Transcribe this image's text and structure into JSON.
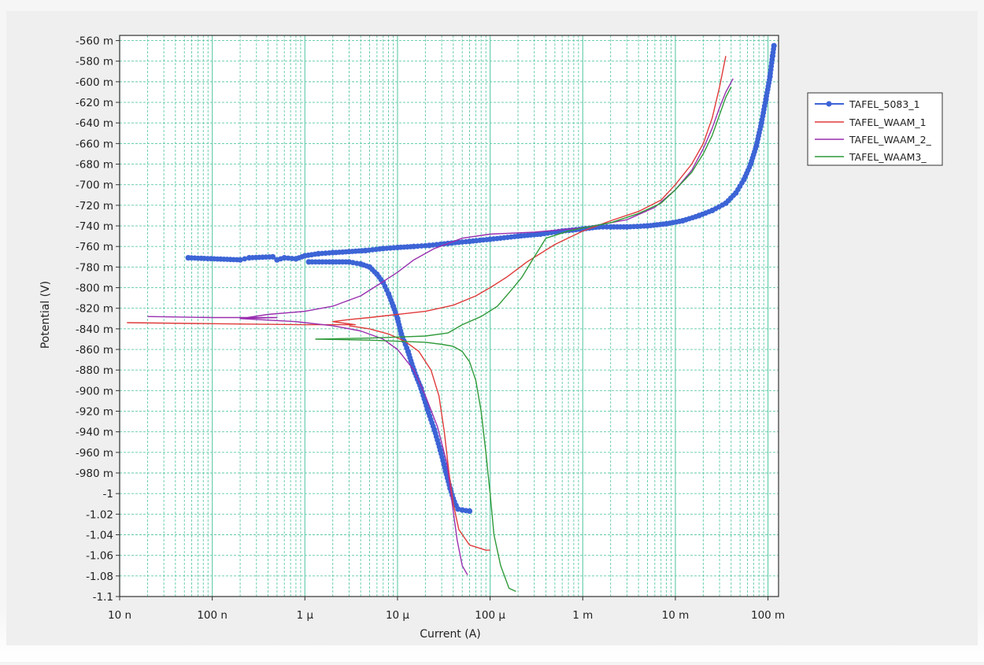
{
  "chart_data": {
    "type": "line",
    "xlabel": "Current (A)",
    "ylabel": "Potential (V)",
    "x_scale": "log",
    "xlim": [
      1e-08,
      0.13
    ],
    "ylim": [
      -1.1,
      -0.555
    ],
    "grid": true,
    "legend_position": "top-right",
    "x_ticks": [
      {
        "value": 1e-08,
        "label": "10 n"
      },
      {
        "value": 1e-07,
        "label": "100 n"
      },
      {
        "value": 1e-06,
        "label": "1 μ"
      },
      {
        "value": 1e-05,
        "label": "10 μ"
      },
      {
        "value": 0.0001,
        "label": "100 μ"
      },
      {
        "value": 0.001,
        "label": "1 m"
      },
      {
        "value": 0.01,
        "label": "10 m"
      },
      {
        "value": 0.1,
        "label": "100 m"
      }
    ],
    "y_ticks": [
      {
        "value": -0.56,
        "label": "-560 m"
      },
      {
        "value": -0.58,
        "label": "-580 m"
      },
      {
        "value": -0.6,
        "label": "-600 m"
      },
      {
        "value": -0.62,
        "label": "-620 m"
      },
      {
        "value": -0.64,
        "label": "-640 m"
      },
      {
        "value": -0.66,
        "label": "-660 m"
      },
      {
        "value": -0.68,
        "label": "-680 m"
      },
      {
        "value": -0.7,
        "label": "-700 m"
      },
      {
        "value": -0.72,
        "label": "-720 m"
      },
      {
        "value": -0.74,
        "label": "-740 m"
      },
      {
        "value": -0.76,
        "label": "-760 m"
      },
      {
        "value": -0.78,
        "label": "-780 m"
      },
      {
        "value": -0.8,
        "label": "-800 m"
      },
      {
        "value": -0.82,
        "label": "-820 m"
      },
      {
        "value": -0.84,
        "label": "-840 m"
      },
      {
        "value": -0.86,
        "label": "-860 m"
      },
      {
        "value": -0.88,
        "label": "-880 m"
      },
      {
        "value": -0.9,
        "label": "-900 m"
      },
      {
        "value": -0.92,
        "label": "-920 m"
      },
      {
        "value": -0.94,
        "label": "-940 m"
      },
      {
        "value": -0.96,
        "label": "-960 m"
      },
      {
        "value": -0.98,
        "label": "-980 m"
      },
      {
        "value": -1.0,
        "label": "-1"
      },
      {
        "value": -1.02,
        "label": "-1.02"
      },
      {
        "value": -1.04,
        "label": "-1.04"
      },
      {
        "value": -1.06,
        "label": "-1.06"
      },
      {
        "value": -1.08,
        "label": "-1.08"
      },
      {
        "value": -1.1,
        "label": "-1.1"
      }
    ],
    "series": [
      {
        "name": "TAFEL_5083_1",
        "color": "#3c64d6",
        "marker": "circle",
        "points": [
          [
            5.5e-08,
            -0.771
          ],
          [
            2e-07,
            -0.773
          ],
          [
            2.5e-07,
            -0.771
          ],
          [
            4.5e-07,
            -0.77
          ],
          [
            5e-07,
            -0.773
          ],
          [
            6e-07,
            -0.771
          ],
          [
            8e-07,
            -0.772
          ],
          [
            1e-06,
            -0.769
          ],
          [
            1.4e-06,
            -0.767
          ],
          [
            2e-06,
            -0.766
          ],
          [
            3e-06,
            -0.765
          ],
          [
            4.5e-06,
            -0.764
          ],
          [
            7e-06,
            -0.762
          ],
          [
            1e-05,
            -0.761
          ],
          [
            1.5e-05,
            -0.76
          ],
          [
            2.2e-05,
            -0.759
          ],
          [
            3.5e-05,
            -0.757
          ],
          [
            6e-05,
            -0.755
          ],
          [
            0.0001,
            -0.753
          ],
          [
            0.0002,
            -0.75
          ],
          [
            0.00035,
            -0.748
          ],
          [
            0.0006,
            -0.745
          ],
          [
            0.001,
            -0.743
          ],
          [
            0.0015,
            -0.741
          ],
          [
            0.002,
            -0.741
          ],
          [
            0.003,
            -0.741
          ],
          [
            0.005,
            -0.74
          ],
          [
            0.008,
            -0.738
          ],
          [
            0.012,
            -0.735
          ],
          [
            0.018,
            -0.73
          ],
          [
            0.025,
            -0.725
          ],
          [
            0.035,
            -0.718
          ],
          [
            0.045,
            -0.708
          ],
          [
            0.055,
            -0.695
          ],
          [
            0.065,
            -0.68
          ],
          [
            0.075,
            -0.662
          ],
          [
            0.085,
            -0.64
          ],
          [
            0.095,
            -0.617
          ],
          [
            0.105,
            -0.595
          ],
          [
            0.112,
            -0.575
          ],
          [
            0.116,
            -0.565
          ]
        ],
        "branch_points": [
          [
            1.1e-06,
            -0.775
          ],
          [
            2e-06,
            -0.775
          ],
          [
            3e-06,
            -0.775
          ],
          [
            4e-06,
            -0.777
          ],
          [
            5e-06,
            -0.78
          ],
          [
            6e-06,
            -0.787
          ],
          [
            7e-06,
            -0.795
          ],
          [
            8e-06,
            -0.806
          ],
          [
            9e-06,
            -0.818
          ],
          [
            1e-05,
            -0.83
          ],
          [
            1.1e-05,
            -0.845
          ],
          [
            1.3e-05,
            -0.862
          ],
          [
            1.5e-05,
            -0.88
          ],
          [
            1.8e-05,
            -0.898
          ],
          [
            2.1e-05,
            -0.918
          ],
          [
            2.5e-05,
            -0.938
          ],
          [
            2.9e-05,
            -0.958
          ],
          [
            3.3e-05,
            -0.978
          ],
          [
            3.7e-05,
            -0.995
          ],
          [
            4.1e-05,
            -1.008
          ],
          [
            4.5e-05,
            -1.015
          ],
          [
            5e-05,
            -1.016
          ],
          [
            6e-05,
            -1.017
          ]
        ]
      },
      {
        "name": "TAFEL_WAAM_1",
        "color": "#e03a3a",
        "marker": "none",
        "points": [
          [
            1.2e-08,
            -0.834
          ],
          [
            1e-07,
            -0.835
          ],
          [
            1e-06,
            -0.836
          ],
          [
            3.5e-06,
            -0.836
          ],
          [
            2e-06,
            -0.833
          ],
          [
            3e-06,
            -0.831
          ],
          [
            5e-06,
            -0.829
          ],
          [
            1e-05,
            -0.826
          ],
          [
            2e-05,
            -0.823
          ],
          [
            4e-05,
            -0.817
          ],
          [
            7e-05,
            -0.808
          ],
          [
            0.0001,
            -0.8
          ],
          [
            0.00015,
            -0.79
          ],
          [
            0.00025,
            -0.775
          ],
          [
            0.0005,
            -0.758
          ],
          [
            0.001,
            -0.745
          ],
          [
            0.002,
            -0.735
          ],
          [
            0.004,
            -0.726
          ],
          [
            0.007,
            -0.715
          ],
          [
            0.01,
            -0.7
          ],
          [
            0.015,
            -0.68
          ],
          [
            0.02,
            -0.66
          ],
          [
            0.025,
            -0.635
          ],
          [
            0.03,
            -0.605
          ],
          [
            0.035,
            -0.575
          ]
        ],
        "branch_points": [
          [
            3e-06,
            -0.837
          ],
          [
            5e-06,
            -0.84
          ],
          [
            8e-06,
            -0.845
          ],
          [
            1.2e-05,
            -0.852
          ],
          [
            1.7e-05,
            -0.862
          ],
          [
            2.3e-05,
            -0.88
          ],
          [
            2.8e-05,
            -0.905
          ],
          [
            3.2e-05,
            -0.94
          ],
          [
            3.6e-05,
            -0.98
          ],
          [
            4e-05,
            -1.01
          ],
          [
            4.6e-05,
            -1.035
          ],
          [
            6e-05,
            -1.05
          ],
          [
            9e-05,
            -1.055
          ],
          [
            0.0001,
            -1.055
          ]
        ]
      },
      {
        "name": "TAFEL_WAAM_2_",
        "color": "#9a2fb0",
        "marker": "none",
        "points": [
          [
            2e-08,
            -0.828
          ],
          [
            1e-07,
            -0.829
          ],
          [
            5e-07,
            -0.829
          ],
          [
            2e-07,
            -0.83
          ],
          [
            4e-07,
            -0.826
          ],
          [
            1e-06,
            -0.823
          ],
          [
            2e-06,
            -0.818
          ],
          [
            4e-06,
            -0.808
          ],
          [
            6e-06,
            -0.798
          ],
          [
            1e-05,
            -0.785
          ],
          [
            1.5e-05,
            -0.773
          ],
          [
            2.5e-05,
            -0.762
          ],
          [
            5e-05,
            -0.752
          ],
          [
            0.0001,
            -0.748
          ],
          [
            0.0003,
            -0.746
          ],
          [
            0.001,
            -0.742
          ],
          [
            0.003,
            -0.734
          ],
          [
            0.006,
            -0.722
          ],
          [
            0.01,
            -0.705
          ],
          [
            0.015,
            -0.686
          ],
          [
            0.02,
            -0.665
          ],
          [
            0.025,
            -0.645
          ],
          [
            0.03,
            -0.625
          ],
          [
            0.035,
            -0.61
          ],
          [
            0.042,
            -0.597
          ]
        ],
        "branch_points": [
          [
            2e-07,
            -0.83
          ],
          [
            8e-07,
            -0.833
          ],
          [
            2e-06,
            -0.837
          ],
          [
            4e-06,
            -0.842
          ],
          [
            7e-06,
            -0.85
          ],
          [
            1e-05,
            -0.86
          ],
          [
            1.5e-05,
            -0.88
          ],
          [
            2e-05,
            -0.905
          ],
          [
            2.7e-05,
            -0.935
          ],
          [
            3.4e-05,
            -0.97
          ],
          [
            3.9e-05,
            -1.01
          ],
          [
            4.4e-05,
            -1.045
          ],
          [
            5e-05,
            -1.07
          ],
          [
            5.7e-05,
            -1.079
          ]
        ]
      },
      {
        "name": "TAFEL_WAAM3_",
        "color": "#2f9a3a",
        "marker": "none",
        "points": [
          [
            1.3e-06,
            -0.85
          ],
          [
            5e-06,
            -0.849
          ],
          [
            1e-05,
            -0.848
          ],
          [
            2e-05,
            -0.847
          ],
          [
            3.5e-05,
            -0.844
          ],
          [
            5e-05,
            -0.836
          ],
          [
            8e-05,
            -0.828
          ],
          [
            0.00012,
            -0.818
          ],
          [
            0.00016,
            -0.805
          ],
          [
            0.00022,
            -0.79
          ],
          [
            0.0003,
            -0.77
          ],
          [
            0.0004,
            -0.752
          ],
          [
            0.0007,
            -0.745
          ],
          [
            0.001,
            -0.742
          ],
          [
            0.002,
            -0.737
          ],
          [
            0.004,
            -0.728
          ],
          [
            0.007,
            -0.718
          ],
          [
            0.01,
            -0.705
          ],
          [
            0.015,
            -0.688
          ],
          [
            0.02,
            -0.67
          ],
          [
            0.025,
            -0.652
          ],
          [
            0.03,
            -0.632
          ],
          [
            0.035,
            -0.615
          ],
          [
            0.04,
            -0.605
          ]
        ],
        "branch_points": [
          [
            1.3e-06,
            -0.85
          ],
          [
            5e-06,
            -0.851
          ],
          [
            1e-05,
            -0.852
          ],
          [
            2e-05,
            -0.853
          ],
          [
            3e-05,
            -0.855
          ],
          [
            4e-05,
            -0.857
          ],
          [
            5e-05,
            -0.862
          ],
          [
            6e-05,
            -0.872
          ],
          [
            7e-05,
            -0.89
          ],
          [
            8e-05,
            -0.92
          ],
          [
            9e-05,
            -0.96
          ],
          [
            0.0001,
            -1.0
          ],
          [
            0.00011,
            -1.04
          ],
          [
            0.00013,
            -1.07
          ],
          [
            0.00016,
            -1.092
          ],
          [
            0.00019,
            -1.095
          ]
        ]
      }
    ]
  }
}
